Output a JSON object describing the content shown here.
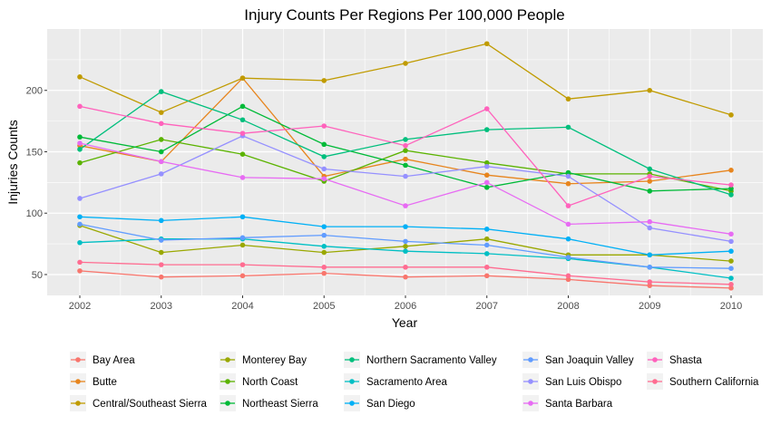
{
  "chart_data": {
    "type": "line",
    "title": "Injury Counts Per Regions Per 100,000 People",
    "xlabel": "Year",
    "ylabel": "Injuries Counts",
    "x": [
      "2002",
      "2003",
      "2004",
      "2005",
      "2006",
      "2007",
      "2008",
      "2009",
      "2010"
    ],
    "y_ticks": [
      "50",
      "100",
      "150",
      "200"
    ],
    "ylim": [
      33,
      250
    ],
    "grid": true,
    "legend_position": "bottom",
    "series": [
      {
        "name": "Bay Area",
        "color": "#F8766D",
        "values": [
          53,
          48,
          49,
          51,
          48,
          49,
          46,
          41,
          39
        ]
      },
      {
        "name": "Butte",
        "color": "#E7851E",
        "values": [
          155,
          142,
          210,
          130,
          144,
          131,
          124,
          126,
          135
        ]
      },
      {
        "name": "Central/Southeast Sierra",
        "color": "#C09B00",
        "values": [
          211,
          182,
          210,
          208,
          222,
          238,
          193,
          200,
          180
        ]
      },
      {
        "name": "Monterey Bay",
        "color": "#9AA800",
        "values": [
          90,
          68,
          74,
          68,
          73,
          79,
          66,
          66,
          61
        ]
      },
      {
        "name": "North Coast",
        "color": "#5BB300",
        "values": [
          141,
          160,
          148,
          126,
          151,
          141,
          132,
          132,
          118
        ]
      },
      {
        "name": "Northeast Sierra",
        "color": "#00BA38",
        "values": [
          162,
          150,
          187,
          156,
          139,
          121,
          133,
          118,
          120
        ]
      },
      {
        "name": "Northern Sacramento Valley",
        "color": "#00BF7D",
        "values": [
          152,
          199,
          176,
          146,
          160,
          168,
          170,
          136,
          115
        ]
      },
      {
        "name": "Sacramento Area",
        "color": "#00BFC4",
        "values": [
          76,
          79,
          79,
          73,
          69,
          67,
          63,
          56,
          47
        ]
      },
      {
        "name": "San Diego",
        "color": "#00B0F6",
        "values": [
          97,
          94,
          97,
          89,
          89,
          87,
          79,
          66,
          69
        ]
      },
      {
        "name": "San Joaquin Valley",
        "color": "#619CFF",
        "values": [
          91,
          78,
          80,
          82,
          77,
          74,
          64,
          56,
          55
        ]
      },
      {
        "name": "San Luis Obispo",
        "color": "#9590FF",
        "values": [
          112,
          132,
          163,
          136,
          130,
          138,
          130,
          88,
          77
        ]
      },
      {
        "name": "Santa Barbara",
        "color": "#E76BF3",
        "values": [
          157,
          142,
          129,
          128,
          106,
          125,
          91,
          93,
          83
        ]
      },
      {
        "name": "Shasta",
        "color": "#FF62BC",
        "values": [
          187,
          173,
          165,
          171,
          155,
          185,
          106,
          130,
          123
        ]
      },
      {
        "name": "Southern California",
        "color": "#FF6C91",
        "values": [
          60,
          58,
          58,
          56,
          56,
          56,
          49,
          44,
          42
        ]
      }
    ]
  }
}
